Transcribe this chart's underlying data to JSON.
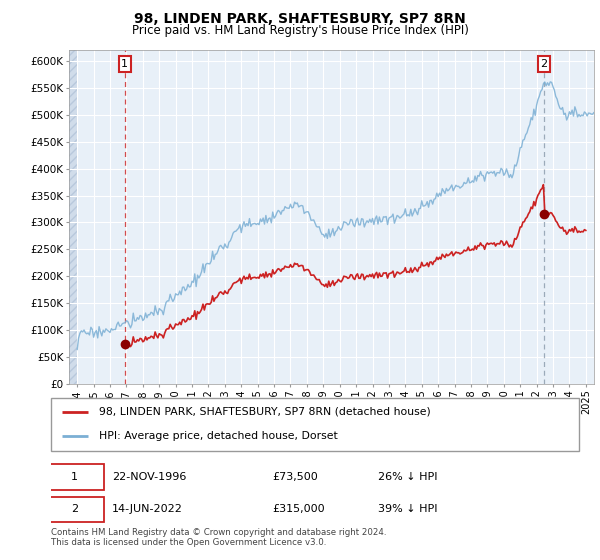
{
  "title": "98, LINDEN PARK, SHAFTESBURY, SP7 8RN",
  "subtitle": "Price paid vs. HM Land Registry's House Price Index (HPI)",
  "legend_line1": "98, LINDEN PARK, SHAFTESBURY, SP7 8RN (detached house)",
  "legend_line2": "HPI: Average price, detached house, Dorset",
  "footer": "Contains HM Land Registry data © Crown copyright and database right 2024.\nThis data is licensed under the Open Government Licence v3.0.",
  "transaction1_date": "22-NOV-1996",
  "transaction1_price": "£73,500",
  "transaction1_hpi": "26% ↓ HPI",
  "transaction1_year": 1996.9,
  "transaction1_value": 73500,
  "transaction2_date": "14-JUN-2022",
  "transaction2_price": "£315,000",
  "transaction2_hpi": "39% ↓ HPI",
  "transaction2_year": 2022.45,
  "transaction2_value": 315000,
  "ylim": [
    0,
    620000
  ],
  "xlim_start": 1993.5,
  "xlim_end": 2025.5,
  "hpi_color": "#7bafd4",
  "price_color": "#cc2222",
  "marker_color": "#8b0000",
  "vline1_color": "#cc2222",
  "vline2_color": "#8899aa",
  "bg_color": "#e8f0f8",
  "hatch_bg_color": "#d0dcea"
}
